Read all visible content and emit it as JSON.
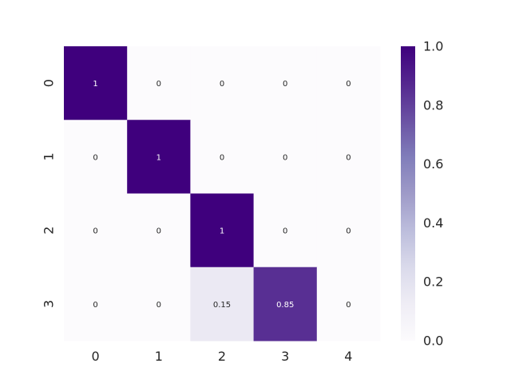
{
  "chart_data": {
    "type": "heatmap",
    "title": "",
    "xlabel": "",
    "ylabel": "",
    "x_categories": [
      "0",
      "1",
      "2",
      "3",
      "4"
    ],
    "y_categories": [
      "0",
      "1",
      "2",
      "3"
    ],
    "values": [
      [
        1,
        0,
        0,
        0,
        0
      ],
      [
        0,
        1,
        0,
        0,
        0
      ],
      [
        0,
        0,
        1,
        0,
        0
      ],
      [
        0,
        0,
        0.15,
        0.85,
        0
      ]
    ],
    "cell_labels": [
      [
        "1",
        "0",
        "0",
        "0",
        "0"
      ],
      [
        "0",
        "1",
        "0",
        "0",
        "0"
      ],
      [
        "0",
        "0",
        "1",
        "0",
        "0"
      ],
      [
        "0",
        "0",
        "0.15",
        "0.85",
        "0"
      ]
    ],
    "colormap": "Purples",
    "vmin": 0,
    "vmax": 1,
    "colorbar_ticks": [
      "0.0",
      "0.2",
      "0.4",
      "0.6",
      "0.8",
      "1.0"
    ],
    "colors": {
      "low": "#fcfbfd",
      "high": "#3f007d"
    }
  }
}
